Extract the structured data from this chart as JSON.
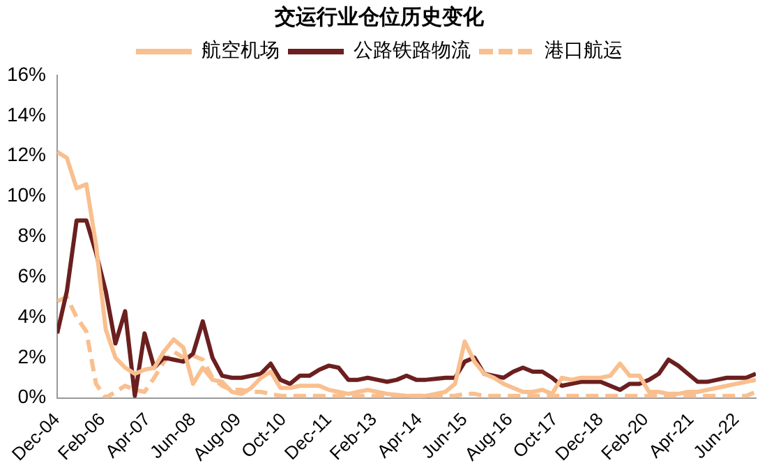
{
  "chart_data": {
    "type": "line",
    "title": "交运行业仓位历史变化",
    "x": [
      "2004-12",
      "2005-03",
      "2005-06",
      "2005-09",
      "2005-12",
      "2006-03",
      "2006-06",
      "2006-09",
      "2006-12",
      "2007-03",
      "2007-06",
      "2007-09",
      "2007-12",
      "2008-03",
      "2008-06",
      "2008-09",
      "2008-12",
      "2009-03",
      "2009-06",
      "2009-09",
      "2009-12",
      "2010-03",
      "2010-06",
      "2010-09",
      "2010-12",
      "2011-03",
      "2011-06",
      "2011-09",
      "2011-12",
      "2012-03",
      "2012-06",
      "2012-09",
      "2012-12",
      "2013-03",
      "2013-06",
      "2013-09",
      "2013-12",
      "2014-03",
      "2014-06",
      "2014-09",
      "2014-12",
      "2015-03",
      "2015-06",
      "2015-09",
      "2015-12",
      "2016-03",
      "2016-06",
      "2016-09",
      "2016-12",
      "2017-03",
      "2017-06",
      "2017-09",
      "2017-12",
      "2018-03",
      "2018-06",
      "2018-09",
      "2018-12",
      "2019-03",
      "2019-06",
      "2019-09",
      "2019-12",
      "2020-03",
      "2020-06",
      "2020-09",
      "2020-12",
      "2021-03",
      "2021-06",
      "2021-09",
      "2021-12",
      "2022-03",
      "2022-06",
      "2022-09",
      "2022-12"
    ],
    "series": [
      {
        "name": "航空机场",
        "color": "#f9bf8e",
        "line_style": "solid",
        "values": [
          12.2,
          11.9,
          10.4,
          10.6,
          7.6,
          3.4,
          2.0,
          1.5,
          1.2,
          1.4,
          1.5,
          2.3,
          2.9,
          2.5,
          0.7,
          1.5,
          0.9,
          0.8,
          0.3,
          0.2,
          0.5,
          1.0,
          1.3,
          0.5,
          0.5,
          0.6,
          0.6,
          0.6,
          0.4,
          0.3,
          0.2,
          0.3,
          0.4,
          0.3,
          0.2,
          0.15,
          0.1,
          0.1,
          0.1,
          0.2,
          0.3,
          0.7,
          2.8,
          1.8,
          1.2,
          1.0,
          0.7,
          0.5,
          0.3,
          0.3,
          0.4,
          0.2,
          1.0,
          0.9,
          1.0,
          1.0,
          1.0,
          1.1,
          1.7,
          1.1,
          1.1,
          0.3,
          0.3,
          0.2,
          0.2,
          0.3,
          0.3,
          0.4,
          0.5,
          0.6,
          0.7,
          0.8,
          0.9
        ]
      },
      {
        "name": "公路铁路物流",
        "color": "#6b1f1f",
        "line_style": "solid",
        "values": [
          3.2,
          5.3,
          8.8,
          8.8,
          7.2,
          5.3,
          2.7,
          4.3,
          0.1,
          3.2,
          1.5,
          2.0,
          1.9,
          1.8,
          2.2,
          3.8,
          2.0,
          1.1,
          1.0,
          1.0,
          1.1,
          1.2,
          1.7,
          0.9,
          0.7,
          1.1,
          1.1,
          1.4,
          1.6,
          1.5,
          0.9,
          0.9,
          1.0,
          0.9,
          0.8,
          0.9,
          1.1,
          0.9,
          0.9,
          0.95,
          1.0,
          1.0,
          1.8,
          2.0,
          1.2,
          1.1,
          1.0,
          1.3,
          1.5,
          1.3,
          1.3,
          1.0,
          0.6,
          0.7,
          0.8,
          0.8,
          0.8,
          0.6,
          0.4,
          0.7,
          0.7,
          0.9,
          1.2,
          1.9,
          1.6,
          1.2,
          0.8,
          0.8,
          0.9,
          1.0,
          1.0,
          1.0,
          1.2
        ]
      },
      {
        "name": "港口航运",
        "color": "#f9bf8e",
        "line_style": "dashed",
        "values": [
          4.8,
          5.0,
          4.0,
          3.3,
          0.7,
          0.0,
          0.3,
          0.6,
          0.4,
          0.3,
          1.0,
          1.8,
          2.3,
          2.0,
          2.1,
          1.9,
          1.0,
          0.6,
          0.4,
          0.4,
          0.3,
          0.3,
          0.2,
          0.1,
          0.1,
          0.1,
          0.1,
          0.1,
          0.1,
          0.1,
          0.1,
          0.1,
          0.1,
          0.1,
          0.1,
          0.1,
          0.1,
          0.1,
          0.1,
          0.1,
          0.1,
          0.1,
          0.2,
          0.2,
          0.1,
          0.1,
          0.1,
          0.1,
          0.1,
          0.1,
          0.1,
          0.1,
          0.1,
          0.1,
          0.1,
          0.1,
          0.1,
          0.1,
          0.1,
          0.1,
          0.1,
          0.1,
          0.1,
          0.1,
          0.1,
          0.1,
          0.1,
          0.1,
          0.1,
          0.1,
          0.1,
          0.1,
          0.3
        ]
      }
    ],
    "xlim": [
      "2004-12",
      "2022-12"
    ],
    "xticks": [
      {
        "value": "2004-12",
        "label": "Dec-04"
      },
      {
        "value": "2006-02",
        "label": "Feb-06"
      },
      {
        "value": "2007-04",
        "label": "Apr-07"
      },
      {
        "value": "2008-06",
        "label": "Jun-08"
      },
      {
        "value": "2009-08",
        "label": "Aug-09"
      },
      {
        "value": "2010-10",
        "label": "Oct-10"
      },
      {
        "value": "2011-12",
        "label": "Dec-11"
      },
      {
        "value": "2013-02",
        "label": "Feb-13"
      },
      {
        "value": "2014-04",
        "label": "Apr-14"
      },
      {
        "value": "2015-06",
        "label": "Jun-15"
      },
      {
        "value": "2016-08",
        "label": "Aug-16"
      },
      {
        "value": "2017-10",
        "label": "Oct-17"
      },
      {
        "value": "2018-12",
        "label": "Dec-18"
      },
      {
        "value": "2020-02",
        "label": "Feb-20"
      },
      {
        "value": "2021-04",
        "label": "Apr-21"
      },
      {
        "value": "2022-06",
        "label": "Jun-22"
      }
    ],
    "ylim": [
      0,
      16
    ],
    "yticks": [
      {
        "value": 0,
        "label": "0%"
      },
      {
        "value": 2,
        "label": "2%"
      },
      {
        "value": 4,
        "label": "4%"
      },
      {
        "value": 6,
        "label": "6%"
      },
      {
        "value": 8,
        "label": "8%"
      },
      {
        "value": 10,
        "label": "10%"
      },
      {
        "value": 12,
        "label": "12%"
      },
      {
        "value": 14,
        "label": "14%"
      },
      {
        "value": 16,
        "label": "16%"
      }
    ],
    "grid": false,
    "legend": "top",
    "marker": "none"
  }
}
